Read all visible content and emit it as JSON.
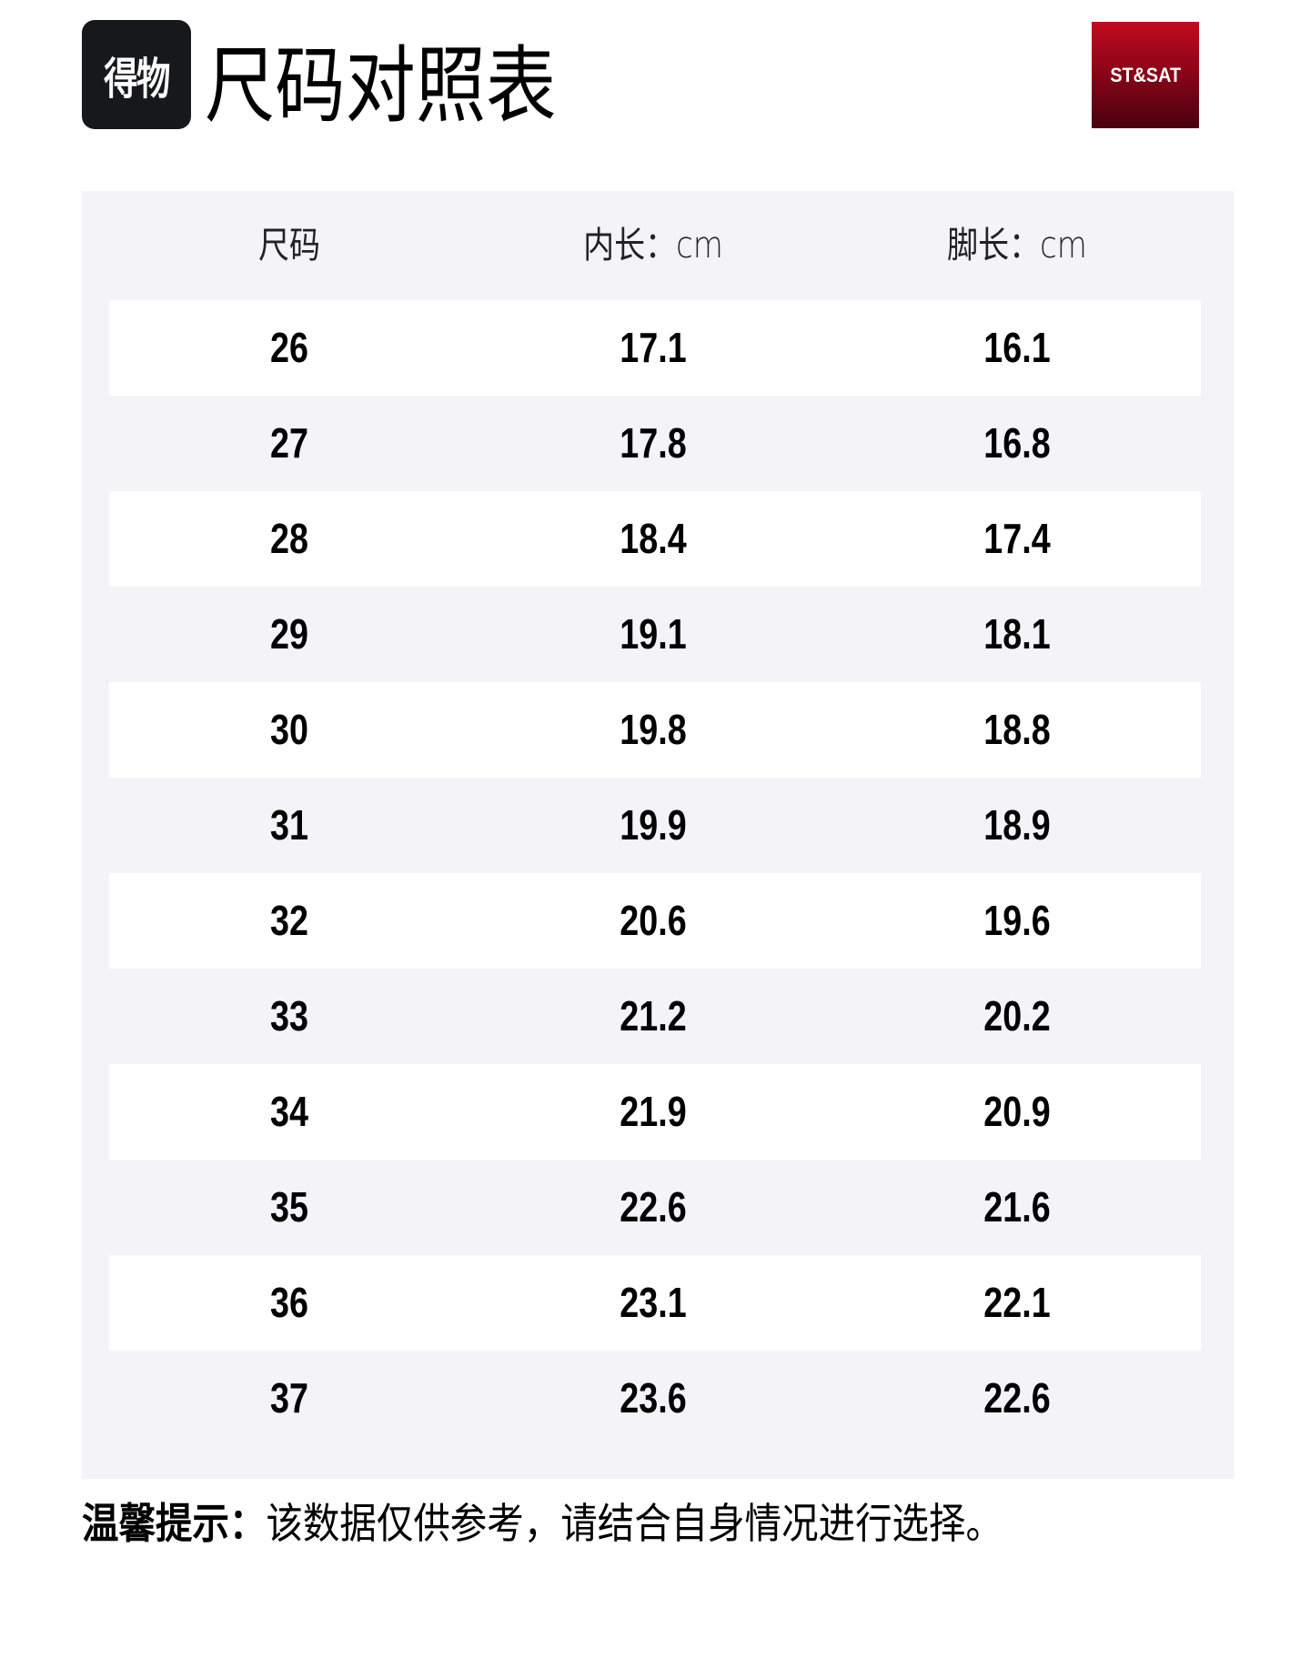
{
  "header": {
    "logo_text": "得物",
    "title": "尺码对照表",
    "brand_logo": "ST&SAT"
  },
  "table": {
    "columns": [
      "尺码",
      "内长：cm",
      "脚长：cm"
    ],
    "rows": [
      [
        "26",
        "17.1",
        "16.1"
      ],
      [
        "27",
        "17.8",
        "16.8"
      ],
      [
        "28",
        "18.4",
        "17.4"
      ],
      [
        "29",
        "19.1",
        "18.1"
      ],
      [
        "30",
        "19.8",
        "18.8"
      ],
      [
        "31",
        "19.9",
        "18.9"
      ],
      [
        "32",
        "20.6",
        "19.6"
      ],
      [
        "33",
        "21.2",
        "20.2"
      ],
      [
        "34",
        "21.9",
        "20.9"
      ],
      [
        "35",
        "22.6",
        "21.6"
      ],
      [
        "36",
        "23.1",
        "22.1"
      ],
      [
        "37",
        "23.6",
        "22.6"
      ]
    ]
  },
  "note": {
    "label": "温馨提示：",
    "text": "该数据仅供参考，请结合自身情况进行选择。"
  },
  "colors": {
    "table_bg": "#f4f4f8",
    "row_alt": "#ffffff",
    "brand_red": "#c30a1e"
  }
}
